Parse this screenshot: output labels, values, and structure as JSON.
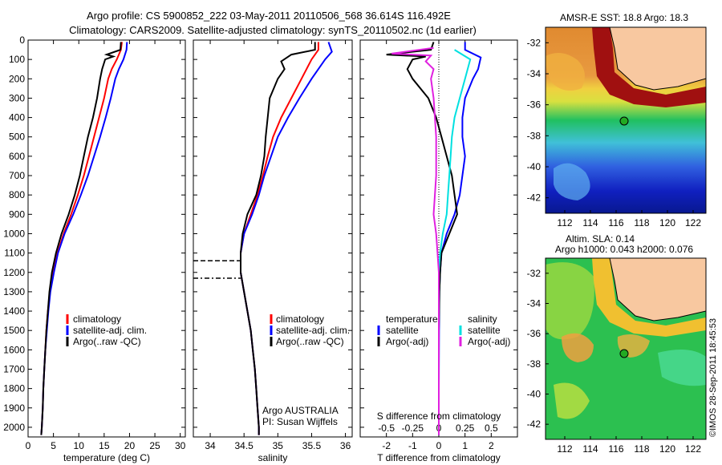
{
  "header": {
    "title_line1": "Argo profile: CS 5900852_222 03-May-2011 20110506_568 36.614S 116.492E",
    "title_line2": "Climatology: CARS2009. Satellite-adjusted climatology: synTS_20110502.nc (1d earlier)"
  },
  "colors": {
    "climatology": "#ff0000",
    "satellite": "#0000ff",
    "argo": "#000000",
    "sal_satellite": "#00e0e0",
    "sal_argo": "#e020e0",
    "land": "#f8c8a0",
    "float_marker": "#22aa22"
  },
  "legend_profiles": [
    "climatology",
    "satellite-adj. clim.",
    "Argo(..raw -QC)"
  ],
  "legend_diff": {
    "temp_header": "temperature",
    "sal_header": "salinity",
    "temp_items": [
      "satellite",
      "Argo(-adj)"
    ],
    "sal_items": [
      "satellite",
      "Argo(-adj)"
    ]
  },
  "credits": {
    "line1": "Argo AUSTRALIA",
    "line2": "PI: Susan Wijffels"
  },
  "map_sst": {
    "title": "AMSR-E SST: 18.8 Argo: 18.3"
  },
  "map_sla": {
    "title_line1": "Altim. SLA: 0.14",
    "title_line2": "Argo h1000: 0.043 h2000: 0.076"
  },
  "watermark": "©IMOS 28-Sep-2011 18:45:53",
  "chart_data": [
    {
      "type": "line",
      "panel": "temperature",
      "xlabel": "temperature (deg C)",
      "xlim": [
        0,
        31
      ],
      "ylim": [
        2050,
        0
      ],
      "xticks": [
        0,
        5,
        10,
        15,
        20,
        25,
        30
      ],
      "yticks": [
        0,
        100,
        200,
        300,
        400,
        500,
        600,
        700,
        800,
        900,
        1000,
        1100,
        1200,
        1300,
        1400,
        1500,
        1600,
        1700,
        1800,
        1900,
        2000
      ],
      "series": [
        {
          "name": "climatology",
          "color_key": "climatology",
          "points": [
            [
              18.5,
              10
            ],
            [
              18.3,
              50
            ],
            [
              17.5,
              100
            ],
            [
              16.5,
              150
            ],
            [
              15.8,
              200
            ],
            [
              15.0,
              300
            ],
            [
              14.0,
              400
            ],
            [
              13.0,
              500
            ],
            [
              12.0,
              600
            ],
            [
              11.0,
              700
            ],
            [
              9.8,
              800
            ],
            [
              8.5,
              900
            ],
            [
              7.0,
              1000
            ],
            [
              5.8,
              1100
            ],
            [
              5.0,
              1200
            ],
            [
              4.3,
              1300
            ],
            [
              3.9,
              1400
            ],
            [
              3.6,
              1500
            ],
            [
              3.4,
              1600
            ],
            [
              3.2,
              1700
            ],
            [
              3.0,
              1800
            ],
            [
              2.9,
              1900
            ],
            [
              2.7,
              2000
            ],
            [
              2.6,
              2040
            ]
          ]
        },
        {
          "name": "satellite-adj. clim.",
          "color_key": "satellite",
          "points": [
            [
              19.5,
              10
            ],
            [
              19.4,
              50
            ],
            [
              18.8,
              100
            ],
            [
              17.9,
              150
            ],
            [
              17.2,
              200
            ],
            [
              16.3,
              300
            ],
            [
              15.3,
              400
            ],
            [
              14.2,
              500
            ],
            [
              13.0,
              600
            ],
            [
              11.8,
              700
            ],
            [
              10.4,
              800
            ],
            [
              8.9,
              900
            ],
            [
              7.2,
              1000
            ],
            [
              5.9,
              1100
            ],
            [
              5.1,
              1200
            ],
            [
              4.4,
              1300
            ],
            [
              4.0,
              1400
            ],
            [
              3.7,
              1500
            ],
            [
              3.4,
              1600
            ],
            [
              3.2,
              1700
            ],
            [
              3.0,
              1800
            ],
            [
              2.9,
              1900
            ],
            [
              2.7,
              2000
            ],
            [
              2.6,
              2040
            ]
          ]
        },
        {
          "name": "Argo(..raw -QC)",
          "color_key": "argo",
          "points": [
            [
              18.3,
              10
            ],
            [
              18.2,
              50
            ],
            [
              15.5,
              75
            ],
            [
              16.8,
              85
            ],
            [
              15.2,
              100
            ],
            [
              14.6,
              150
            ],
            [
              14.2,
              200
            ],
            [
              13.6,
              300
            ],
            [
              12.8,
              400
            ],
            [
              11.8,
              500
            ],
            [
              11.0,
              600
            ],
            [
              10.2,
              700
            ],
            [
              9.2,
              800
            ],
            [
              8.0,
              900
            ],
            [
              6.6,
              1000
            ],
            [
              5.5,
              1100
            ],
            [
              4.7,
              1200
            ],
            [
              4.2,
              1300
            ],
            [
              3.9,
              1400
            ],
            [
              3.6,
              1500
            ],
            [
              3.4,
              1600
            ],
            [
              3.2,
              1700
            ],
            [
              3.0,
              1800
            ],
            [
              2.9,
              1900
            ],
            [
              2.7,
              2000
            ],
            [
              2.6,
              2040
            ]
          ]
        }
      ]
    },
    {
      "type": "line",
      "panel": "salinity",
      "xlabel": "salinity",
      "xlim": [
        33.75,
        36.1
      ],
      "ylim": [
        2050,
        0
      ],
      "xticks": [
        34,
        34.5,
        35,
        35.5,
        36
      ],
      "series": [
        {
          "name": "climatology",
          "color_key": "climatology",
          "points": [
            [
              35.6,
              10
            ],
            [
              35.6,
              50
            ],
            [
              35.5,
              100
            ],
            [
              35.35,
              200
            ],
            [
              35.2,
              300
            ],
            [
              35.05,
              400
            ],
            [
              34.93,
              500
            ],
            [
              34.85,
              600
            ],
            [
              34.78,
              700
            ],
            [
              34.7,
              800
            ],
            [
              34.6,
              900
            ],
            [
              34.5,
              1000
            ],
            [
              34.45,
              1100
            ],
            [
              34.45,
              1200
            ],
            [
              34.5,
              1300
            ],
            [
              34.55,
              1400
            ],
            [
              34.6,
              1500
            ],
            [
              34.63,
              1600
            ],
            [
              34.66,
              1700
            ],
            [
              34.68,
              1800
            ],
            [
              34.7,
              1900
            ],
            [
              34.72,
              2000
            ],
            [
              34.72,
              2040
            ]
          ]
        },
        {
          "name": "satellite-adj. clim.",
          "color_key": "satellite",
          "points": [
            [
              35.75,
              10
            ],
            [
              35.8,
              60
            ],
            [
              35.7,
              100
            ],
            [
              35.5,
              200
            ],
            [
              35.32,
              300
            ],
            [
              35.15,
              400
            ],
            [
              35.0,
              500
            ],
            [
              34.9,
              600
            ],
            [
              34.8,
              700
            ],
            [
              34.72,
              800
            ],
            [
              34.62,
              900
            ],
            [
              34.5,
              1000
            ],
            [
              34.45,
              1100
            ],
            [
              34.45,
              1200
            ],
            [
              34.5,
              1300
            ],
            [
              34.55,
              1400
            ],
            [
              34.6,
              1500
            ],
            [
              34.63,
              1600
            ],
            [
              34.66,
              1700
            ],
            [
              34.68,
              1800
            ],
            [
              34.7,
              1900
            ],
            [
              34.72,
              2000
            ],
            [
              34.72,
              2040
            ]
          ]
        },
        {
          "name": "Argo(..raw -QC)",
          "color_key": "argo",
          "points": [
            [
              35.55,
              10
            ],
            [
              35.55,
              50
            ],
            [
              35.2,
              75
            ],
            [
              35.05,
              110
            ],
            [
              35.1,
              150
            ],
            [
              35.0,
              200
            ],
            [
              34.88,
              300
            ],
            [
              34.85,
              400
            ],
            [
              34.82,
              500
            ],
            [
              34.8,
              600
            ],
            [
              34.75,
              700
            ],
            [
              34.68,
              800
            ],
            [
              34.55,
              900
            ],
            [
              34.48,
              1000
            ],
            [
              34.45,
              1100
            ],
            [
              34.45,
              1200
            ],
            [
              34.5,
              1300
            ],
            [
              34.55,
              1400
            ],
            [
              34.6,
              1500
            ],
            [
              34.63,
              1600
            ],
            [
              34.66,
              1700
            ],
            [
              34.68,
              1800
            ],
            [
              34.7,
              1900
            ],
            [
              34.72,
              2000
            ],
            [
              34.72,
              2040
            ]
          ]
        }
      ],
      "markers": [
        {
          "depth": 1140
        },
        {
          "depth": 1230
        }
      ]
    },
    {
      "type": "line",
      "panel": "difference",
      "xlabel": "T difference from climatology",
      "xlabel_top": "S difference from climatology",
      "xlim": [
        -3,
        3
      ],
      "ylim": [
        2050,
        0
      ],
      "xticks": [
        -2,
        -1,
        0,
        1,
        2
      ],
      "sticks": [
        [
          "-0.5",
          -2
        ],
        [
          "-0.25",
          -1
        ],
        [
          "0",
          0
        ],
        [
          "0.25",
          1
        ],
        [
          "0.5",
          2
        ]
      ],
      "series": [
        {
          "name": "temperature satellite",
          "color_key": "satellite",
          "points": [
            [
              1.0,
              10
            ],
            [
              1.0,
              50
            ],
            [
              1.6,
              90
            ],
            [
              1.5,
              150
            ],
            [
              1.3,
              200
            ],
            [
              1.0,
              300
            ],
            [
              0.9,
              400
            ],
            [
              0.9,
              500
            ],
            [
              1.0,
              600
            ],
            [
              0.9,
              700
            ],
            [
              0.8,
              800
            ],
            [
              0.6,
              900
            ],
            [
              0.3,
              1000
            ],
            [
              0.1,
              1100
            ],
            [
              0.05,
              1200
            ],
            [
              0.02,
              1300
            ],
            [
              0.01,
              1500
            ],
            [
              0,
              1800
            ],
            [
              0,
              2000
            ],
            [
              0,
              2040
            ]
          ]
        },
        {
          "name": "temperature Argo(-adj)",
          "color_key": "argo",
          "points": [
            [
              -0.2,
              10
            ],
            [
              -0.3,
              50
            ],
            [
              -2.0,
              75
            ],
            [
              -0.5,
              85
            ],
            [
              -1.0,
              100
            ],
            [
              -1.2,
              150
            ],
            [
              -1.0,
              200
            ],
            [
              -0.4,
              300
            ],
            [
              -0.1,
              400
            ],
            [
              0.1,
              500
            ],
            [
              0.3,
              600
            ],
            [
              0.5,
              700
            ],
            [
              0.6,
              800
            ],
            [
              0.7,
              900
            ],
            [
              0.4,
              1000
            ],
            [
              0.1,
              1100
            ],
            [
              0.05,
              1200
            ],
            [
              0.02,
              1300
            ],
            [
              0,
              1500
            ],
            [
              0,
              1800
            ],
            [
              0,
              2000
            ],
            [
              0,
              2040
            ]
          ]
        },
        {
          "name": "salinity satellite",
          "color_key": "sal_satellite",
          "points": [
            [
              0.6,
              50
            ],
            [
              1.2,
              100
            ],
            [
              1.0,
              200
            ],
            [
              0.8,
              300
            ],
            [
              0.6,
              400
            ],
            [
              0.5,
              500
            ],
            [
              0.45,
              600
            ],
            [
              0.4,
              700
            ],
            [
              0.35,
              800
            ],
            [
              0.3,
              900
            ],
            [
              0.15,
              1000
            ],
            [
              0.05,
              1100
            ],
            [
              0,
              1200
            ],
            [
              0,
              1500
            ],
            [
              0,
              2040
            ]
          ]
        },
        {
          "name": "salinity Argo(-adj)",
          "color_key": "sal_argo",
          "points": [
            [
              -0.2,
              40
            ],
            [
              -1.8,
              70
            ],
            [
              -0.3,
              80
            ],
            [
              -0.5,
              110
            ],
            [
              -0.2,
              150
            ],
            [
              -0.3,
              200
            ],
            [
              -0.2,
              300
            ],
            [
              -0.15,
              400
            ],
            [
              -0.1,
              500
            ],
            [
              -0.1,
              600
            ],
            [
              -0.1,
              700
            ],
            [
              -0.15,
              800
            ],
            [
              -0.2,
              900
            ],
            [
              -0.1,
              1000
            ],
            [
              -0.05,
              1100
            ],
            [
              0,
              1200
            ],
            [
              0,
              1500
            ],
            [
              0,
              2040
            ]
          ]
        }
      ]
    },
    {
      "type": "heatmap",
      "panel": "sst_map",
      "xticks": [
        112,
        114,
        116,
        118,
        120,
        122
      ],
      "yticks": [
        -32,
        -34,
        -36,
        -38,
        -40,
        -42
      ],
      "xlim": [
        110.5,
        123
      ],
      "ylim": [
        -43,
        -31
      ],
      "float_position": [
        116.5,
        -36.6
      ]
    },
    {
      "type": "heatmap",
      "panel": "sla_map",
      "xticks": [
        112,
        114,
        116,
        118,
        120,
        122
      ],
      "yticks": [
        -32,
        -34,
        -36,
        -38,
        -40,
        -42
      ],
      "xlim": [
        110.5,
        123
      ],
      "ylim": [
        -43,
        -31
      ],
      "float_position": [
        116.5,
        -36.6
      ]
    }
  ]
}
